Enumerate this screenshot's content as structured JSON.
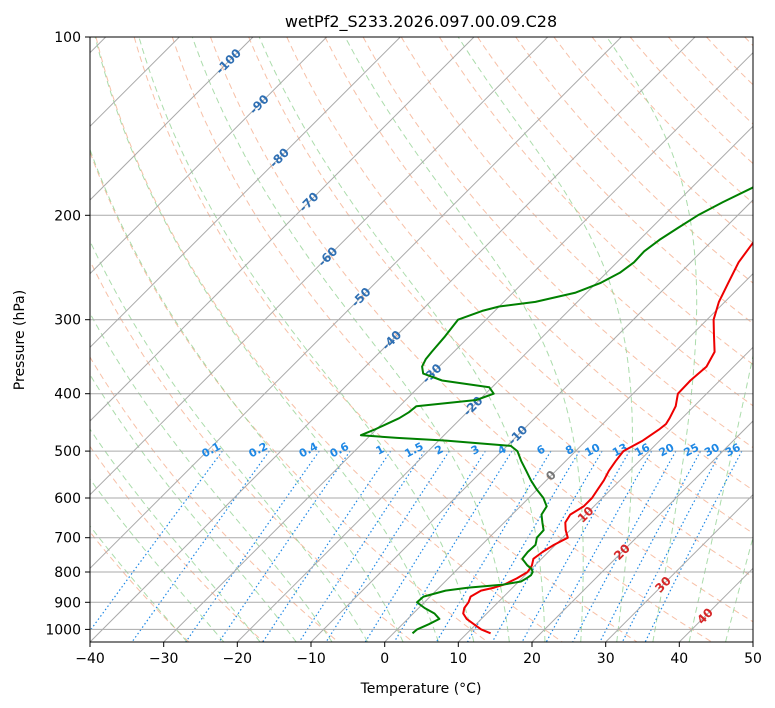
{
  "chart_data": {
    "type": "line",
    "title": "wetPf2_S233.2026.097.00.09.C28",
    "xlabel": "Temperature (°C)",
    "ylabel": "Pressure (hPa)",
    "xlim": [
      -40,
      50
    ],
    "ylim": [
      1050,
      100
    ],
    "yscale": "log",
    "x_ticks": [
      "−40",
      "−30",
      "−20",
      "−10",
      "0",
      "10",
      "20",
      "30",
      "40",
      "50"
    ],
    "x_tick_values": [
      -40,
      -30,
      -20,
      -10,
      0,
      10,
      20,
      30,
      40,
      50
    ],
    "y_ticks": [
      "100",
      "200",
      "300",
      "400",
      "500",
      "600",
      "700",
      "800",
      "900",
      "1000"
    ],
    "y_tick_values": [
      100,
      200,
      300,
      400,
      500,
      600,
      700,
      800,
      900,
      1000
    ],
    "grid": true,
    "skew": true,
    "colors": {
      "temperature": "#ee0000",
      "dewpoint": "#008000",
      "isotherm": "#aaaaaa",
      "dry_adiabat": "#f4a582",
      "moist_adiabat": "#8fd08f",
      "mixing_ratio": "#1e88e5",
      "isotherm_label": "#2f6fb3",
      "temp_label_red": "#d62728"
    },
    "series": [
      {
        "key": "temperature",
        "p": [
          1015,
          1000,
          980,
          960,
          940,
          920,
          900,
          880,
          860,
          850,
          840,
          820,
          800,
          780,
          760,
          740,
          720,
          700,
          680,
          660,
          640,
          620,
          600,
          580,
          560,
          540,
          520,
          500,
          480,
          460,
          450,
          440,
          420,
          400,
          380,
          360,
          340,
          320,
          300,
          280,
          260,
          240,
          220,
          200,
          180,
          170,
          160,
          150,
          140,
          130,
          120,
          110,
          105,
          100
        ],
        "x": [
          13.2,
          11.4,
          9.7,
          8.0,
          6.8,
          6.2,
          6.0,
          5.5,
          6.1,
          7.5,
          8.4,
          9.3,
          9.9,
          9.6,
          8.9,
          9.2,
          9.8,
          10.7,
          9.4,
          8.3,
          7.9,
          8.6,
          8.6,
          8.2,
          7.8,
          7.2,
          6.8,
          6.5,
          7.7,
          8.4,
          8.6,
          8.3,
          7.5,
          6.1,
          6.0,
          6.3,
          5.4,
          3.2,
          0.9,
          -0.8,
          -2.1,
          -3.5,
          -4.3,
          -5.6,
          -5.6,
          -5.0,
          -3.9,
          -1.8,
          1.4,
          4.8,
          7.6,
          8.9,
          9.4,
          10.4
        ]
      },
      {
        "key": "dewpoint",
        "p": [
          1015,
          1000,
          980,
          960,
          940,
          920,
          900,
          880,
          860,
          850,
          840,
          830,
          820,
          810,
          800,
          790,
          780,
          760,
          740,
          720,
          700,
          680,
          660,
          640,
          620,
          600,
          580,
          560,
          540,
          520,
          500,
          490,
          480,
          475,
          470,
          460,
          440,
          430,
          420,
          410,
          400,
          390,
          380,
          370,
          360,
          350,
          340,
          320,
          300,
          290,
          285,
          280,
          270,
          260,
          250,
          240,
          230,
          220,
          210,
          200,
          190,
          180,
          170,
          160,
          150,
          140,
          130,
          120,
          110,
          100
        ],
        "x": [
          2.6,
          2.7,
          3.6,
          4.3,
          2.9,
          0.8,
          -1.0,
          -0.9,
          1.3,
          4.0,
          8.3,
          10.3,
          10.6,
          10.8,
          10.6,
          10.0,
          9.0,
          7.4,
          7.2,
          7.3,
          6.5,
          6.4,
          5.2,
          4.0,
          3.6,
          2.0,
          -0.1,
          -2.1,
          -4.0,
          -6.0,
          -7.9,
          -9.5,
          -19.0,
          -26.0,
          -31.3,
          -30.2,
          -28.4,
          -27.9,
          -27.7,
          -20.4,
          -18.9,
          -20.4,
          -27.7,
          -31.2,
          -32.3,
          -32.8,
          -33.0,
          -33.3,
          -33.8,
          -31.7,
          -30.0,
          -25.7,
          -21.5,
          -19.4,
          -18.2,
          -17.7,
          -17.8,
          -17.3,
          -16.4,
          -15.4,
          -13.8,
          -11.8,
          -10.5,
          -8.5,
          -7.5,
          -7.6,
          -6.9,
          -4.4,
          -1.6,
          1.1
        ]
      }
    ],
    "isotherm_labels": [
      "-100",
      "-90",
      "-80",
      "-70",
      "-60",
      "-50",
      "-40",
      "-30",
      "-20",
      "-10"
    ],
    "isotherm_label_values": [
      -100,
      -90,
      -80,
      -70,
      -60,
      -50,
      -40,
      -30,
      -20,
      -10
    ],
    "isotherm_label_pressures": [
      110,
      130,
      160,
      190,
      235,
      275,
      325,
      370,
      420,
      470
    ],
    "temp_labels": [
      "0",
      "10",
      "20",
      "30",
      "40"
    ],
    "temp_label_values": [
      0,
      10,
      20,
      30,
      40
    ],
    "temp_label_pressures": [
      550,
      640,
      740,
      840,
      950
    ],
    "mixing_ratio_labels": [
      "0.1",
      "0.2",
      "0.4",
      "0.6",
      "1",
      "1.5",
      "2",
      "3",
      "4",
      "6",
      "8",
      "10",
      "13",
      "16",
      "20",
      "25",
      "30",
      "36"
    ],
    "mixing_ratio_values": [
      0.1,
      0.2,
      0.4,
      0.6,
      1,
      1.5,
      2,
      3,
      4,
      6,
      8,
      10,
      13,
      16,
      20,
      25,
      30,
      36
    ]
  }
}
